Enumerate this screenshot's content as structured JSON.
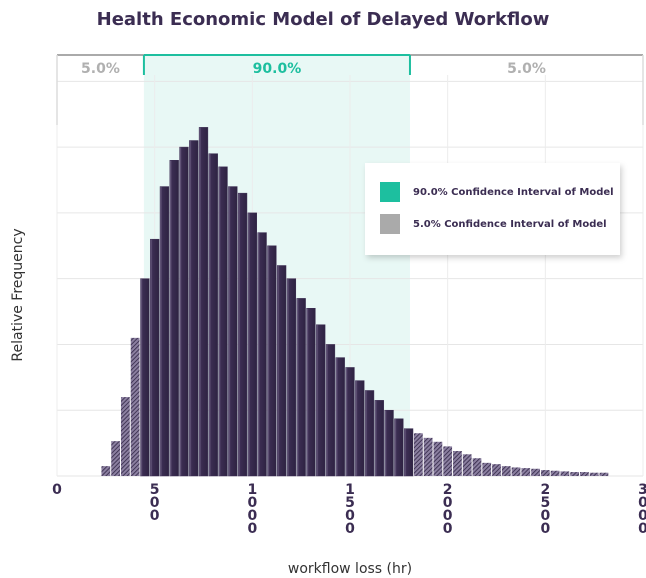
{
  "chart_data": {
    "type": "histogram",
    "title": "Health Economic Model of Delayed Workflow",
    "xlabel": "workflow loss (hr)",
    "ylabel": "Relative Frequency",
    "bins": [
      225,
      275,
      325,
      375,
      425,
      475,
      525,
      575,
      625,
      675,
      725,
      775,
      825,
      875,
      925,
      975,
      1025,
      1075,
      1125,
      1175,
      1225,
      1275,
      1325,
      1375,
      1425,
      1475,
      1525,
      1575,
      1625,
      1675,
      1725,
      1775,
      1825,
      1875,
      1925,
      1975,
      2025,
      2075,
      2125,
      2175,
      2225,
      2275,
      2325,
      2375,
      2425,
      2475,
      2525,
      2575,
      2625,
      2675,
      2725,
      2775,
      2825
    ],
    "values": [
      0.15,
      0.53,
      1.2,
      2.1,
      3.0,
      3.6,
      4.4,
      4.8,
      5.0,
      5.1,
      5.3,
      4.9,
      4.7,
      4.4,
      4.3,
      4.0,
      3.7,
      3.5,
      3.2,
      3.0,
      2.7,
      2.55,
      2.3,
      2.0,
      1.8,
      1.65,
      1.45,
      1.3,
      1.15,
      1.0,
      0.87,
      0.72,
      0.65,
      0.58,
      0.52,
      0.45,
      0.38,
      0.33,
      0.27,
      0.2,
      0.18,
      0.15,
      0.13,
      0.12,
      0.11,
      0.09,
      0.08,
      0.07,
      0.06,
      0.06,
      0.05,
      0.05
    ],
    "bar_color": "#3b2d52",
    "ci": [
      445,
      1807
    ],
    "ci_labels": [
      "5.0%",
      "90.0%",
      "5.0%"
    ],
    "ci_color": "#1dbf9f",
    "tail_color": "#aaaaaa",
    "legend": [
      {
        "name": "90.0% Confidence Interval of Model",
        "color": "#1dbf9f"
      },
      {
        "name": "5.0% Confidence Interval of Model",
        "color": "#aaaaaa"
      }
    ],
    "xlim": [
      0,
      3000
    ],
    "xticks": [
      0,
      500,
      1000,
      1500,
      2000,
      2500,
      3000
    ],
    "ylim": [
      0,
      6.4
    ],
    "yticks": [
      0,
      1,
      2,
      3,
      4,
      5,
      6
    ],
    "grid": true
  }
}
